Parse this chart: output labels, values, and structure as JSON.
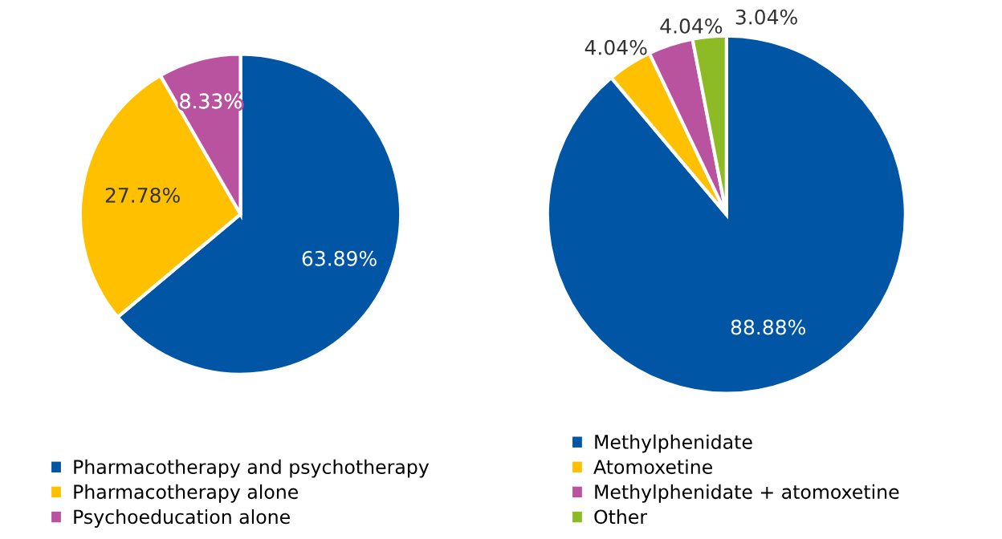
{
  "chart_data": [
    {
      "type": "pie",
      "categories": [
        "Pharmacotherapy and psychotherapy",
        "Pharmacotherapy alone",
        "Psychoeducation alone"
      ],
      "values": [
        63.89,
        27.78,
        8.33
      ],
      "colors": [
        "#0055a4",
        "#ffc000",
        "#b9539f"
      ],
      "value_labels": [
        "63.89%",
        "27.78%",
        "8.33%"
      ],
      "legend": "bottom"
    },
    {
      "type": "pie",
      "categories": [
        "Methylphenidate",
        "Atomoxetine",
        "Methylphenidate + atomoxetine",
        "Other"
      ],
      "values": [
        88.88,
        4.04,
        4.04,
        3.04
      ],
      "colors": [
        "#0055a4",
        "#ffc000",
        "#b9539f",
        "#8cbb26"
      ],
      "value_labels": [
        "88.88%",
        "4.04%",
        "4.04%",
        "3.04%"
      ],
      "legend": "bottom"
    }
  ]
}
